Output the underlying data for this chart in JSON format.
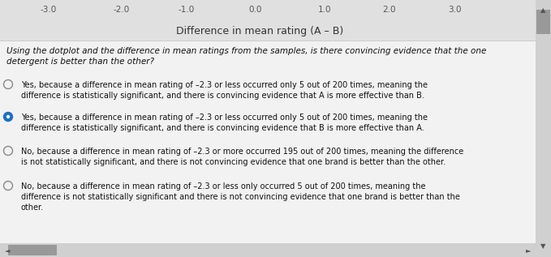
{
  "top_axis_label": "Difference in mean rating (A – B)",
  "top_ticks": [
    "-3.0",
    "-2.0",
    "-1.0",
    "0.0",
    "1.0",
    "2.0",
    "3.0"
  ],
  "question": "Using the dotplot and the difference in mean ratings from the samples, is there convincing evidence that the one\ndetergent is better than the other?",
  "choices": [
    "Yes, because a difference in mean rating of –2.3 or less occurred only 5 out of 200 times, meaning the\ndifference is statistically significant, and there is convincing evidence that A is more effective than B.",
    "Yes, because a difference in mean rating of –2.3 or less occurred only 5 out of 200 times, meaning the\ndifference is statistically significant, and there is convincing evidence that B is more effective than A.",
    "No, because a difference in mean rating of –2.3 or more occurred 195 out of 200 times, meaning the difference\nis not statistically significant, and there is not convincing evidence that one brand is better than the other.",
    "No, because a difference in mean rating of –2.3 or less only occurred 5 out of 200 times, meaning the\ndifference is not statistically significant and there is not convincing evidence that one brand is better than the\nother."
  ],
  "selected_index": 1,
  "background_color": "#e0e0e0",
  "content_color": "#f0f0f0",
  "text_color": "#111111",
  "font_size_question": 7.5,
  "font_size_choices": 7.0,
  "font_size_axis": 7.5,
  "selected_color": "#1a6fc4",
  "unselected_color": "#888888",
  "scrollbar_color": "#bbbbbb",
  "scrollbar_thumb": "#999999"
}
